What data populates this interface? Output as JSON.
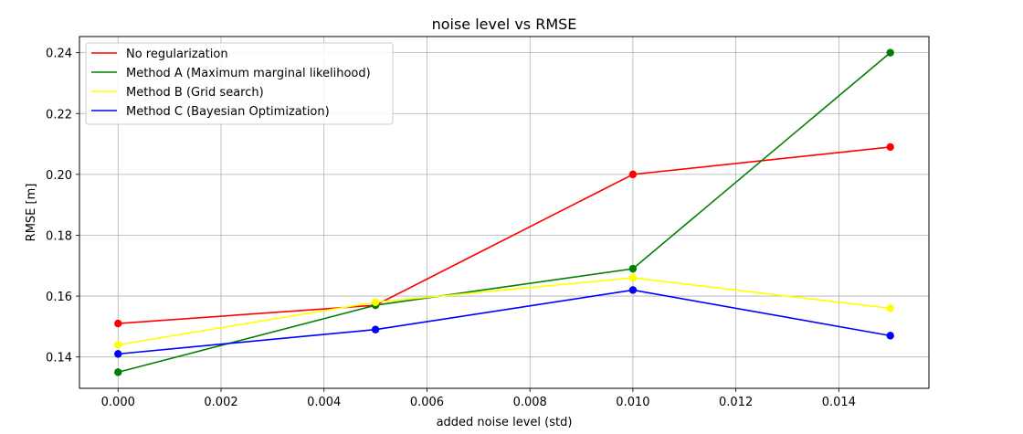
{
  "chart_data": {
    "type": "line",
    "title": "noise level vs RMSE",
    "xlabel": "added noise level (std)",
    "ylabel": "RMSE [m]",
    "x": [
      0.0,
      0.005,
      0.01,
      0.015
    ],
    "xlim": [
      -0.00075,
      0.01575
    ],
    "ylim": [
      0.1297,
      0.2453
    ],
    "xticks": [
      0.0,
      0.002,
      0.004,
      0.006,
      0.008,
      0.01,
      0.012,
      0.014
    ],
    "xtick_labels": [
      "0.000",
      "0.002",
      "0.004",
      "0.006",
      "0.008",
      "0.010",
      "0.012",
      "0.014"
    ],
    "yticks": [
      0.14,
      0.16,
      0.18,
      0.2,
      0.22,
      0.24
    ],
    "ytick_labels": [
      "0.14",
      "0.16",
      "0.18",
      "0.20",
      "0.22",
      "0.24"
    ],
    "grid": true,
    "legend_position": "upper-left",
    "series": [
      {
        "name": "No regularization",
        "color": "#ff0000",
        "values": [
          0.151,
          0.157,
          0.2,
          0.209
        ]
      },
      {
        "name": "Method A (Maximum marginal likelihood)",
        "color": "#008000",
        "values": [
          0.135,
          0.157,
          0.169,
          0.24
        ]
      },
      {
        "name": "Method B (Grid search)",
        "color": "#ffff00",
        "values": [
          0.144,
          0.158,
          0.166,
          0.156
        ]
      },
      {
        "name": "Method C (Bayesian Optimization)",
        "color": "#0000ff",
        "values": [
          0.141,
          0.149,
          0.162,
          0.147
        ]
      }
    ]
  }
}
